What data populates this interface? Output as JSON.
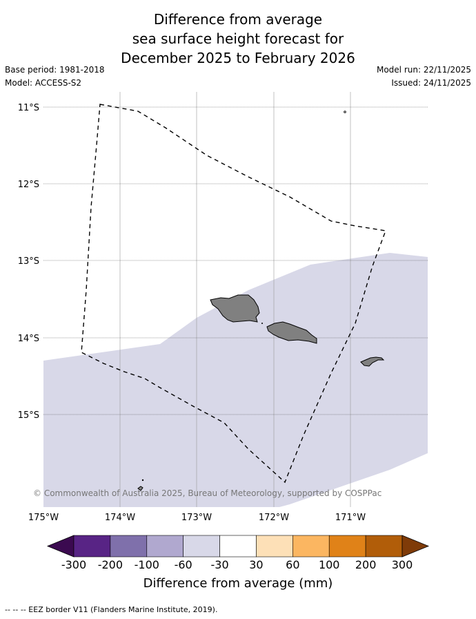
{
  "title": {
    "line1": "Difference from average",
    "line2": "sea surface height forecast for",
    "line3": "December 2025 to February 2026"
  },
  "meta_left": {
    "base_period": "Base period: 1981-2018",
    "model": "Model: ACCESS-S2"
  },
  "meta_right": {
    "model_run": "Model run: 22/11/2025",
    "issued": "Issued: 24/11/2025"
  },
  "map": {
    "lat_labels": [
      "11°S",
      "12°S",
      "13°S",
      "14°S",
      "15°S"
    ],
    "lon_labels": [
      "175°W",
      "174°W",
      "173°W",
      "172°W",
      "171°W"
    ],
    "copyright": "© Commonwealth of Australia 2025, Bureau of Meteorology, supported by COSPPac",
    "anomaly_fill_color": "#d8d8e8",
    "land_color": "#808080"
  },
  "colorbar": {
    "label": "Difference from average (mm)",
    "ticks": [
      "-300",
      "-200",
      "-100",
      "-60",
      "-30",
      "30",
      "60",
      "100",
      "200",
      "300"
    ],
    "colors": [
      "#582485",
      "#7f70ab",
      "#b0a8cf",
      "#d8d8e8",
      "#ffffff",
      "#fde0b7",
      "#fbb661",
      "#e08218",
      "#b15d09"
    ],
    "under_color": "#3b0a50",
    "over_color": "#7f3b08"
  },
  "footer": {
    "legend_text": "--  --  -- EEZ border V11 (Flanders Marine Institute, 2019)."
  }
}
